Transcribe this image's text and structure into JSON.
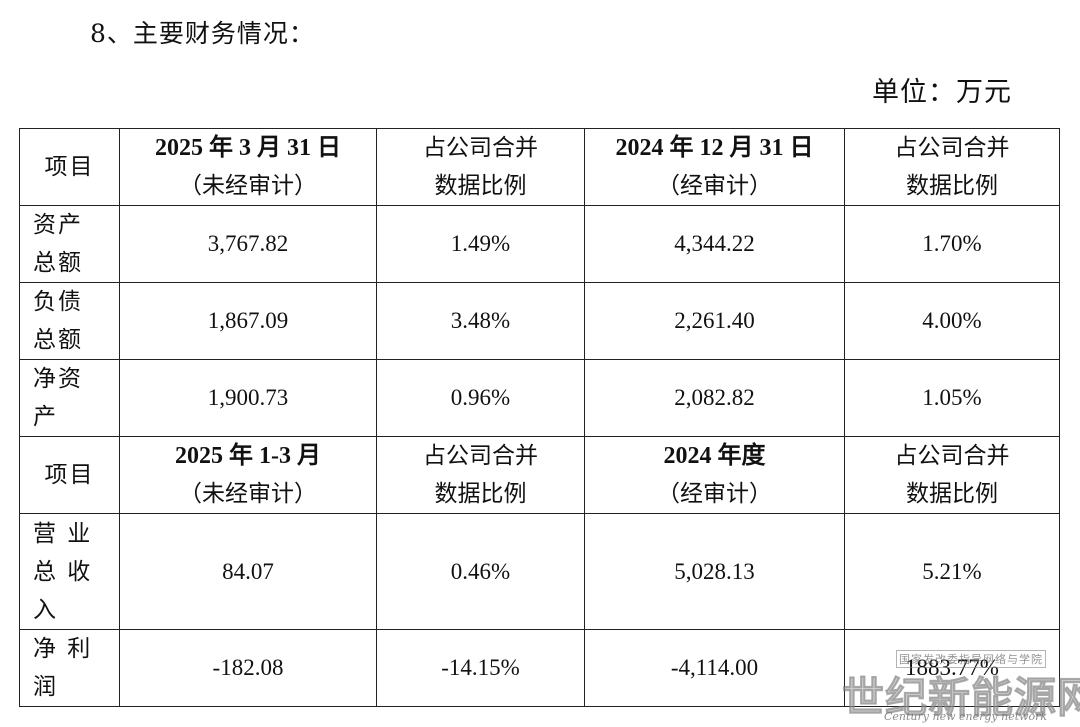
{
  "heading": "8、主要财务情况：",
  "unit": "单位：万元",
  "section1": {
    "header": {
      "item": "项目",
      "period1_line1": "2025 年 3 月 31 日",
      "period1_line2": "（未经审计）",
      "ratio1_line1": "占公司合并",
      "ratio1_line2": "数据比例",
      "period2_line1": "2024 年 12 月 31 日",
      "period2_line2": "（经审计）",
      "ratio2_line1": "占公司合并",
      "ratio2_line2": "数据比例"
    },
    "rows": [
      {
        "label1": "资产",
        "label2": "总额",
        "v1": "3,767.82",
        "r1": "1.49%",
        "v2": "4,344.22",
        "r2": "1.70%"
      },
      {
        "label1": "负债",
        "label2": "总额",
        "v1": "1,867.09",
        "r1": "3.48%",
        "v2": "2,261.40",
        "r2": "4.00%"
      },
      {
        "label1": "净资",
        "label2": "产",
        "v1": "1,900.73",
        "r1": "0.96%",
        "v2": "2,082.82",
        "r2": "1.05%"
      }
    ]
  },
  "section2": {
    "header": {
      "item": "项目",
      "period1_line1": "2025 年 1-3 月",
      "period1_line2": "（未经审计）",
      "ratio1_line1": "占公司合并",
      "ratio1_line2": "数据比例",
      "period2_line1": "2024 年度",
      "period2_line2": "（经审计）",
      "ratio2_line1": "占公司合并",
      "ratio2_line2": "数据比例"
    },
    "rows": [
      {
        "label1": "营 业",
        "label2": "总 收",
        "label3": "入",
        "v1": "84.07",
        "r1": "0.46%",
        "v2": "5,028.13",
        "r2": "5.21%"
      },
      {
        "label1": "净 利",
        "label2": "润",
        "v1": "-182.08",
        "r1": "-14.15%",
        "v2": "-4,114.00",
        "r2": "1883.77%"
      }
    ]
  },
  "watermark": {
    "top": "国家发改委指导网络与学院",
    "main": "世纪新能源网",
    "sub": "Century new energy network"
  }
}
